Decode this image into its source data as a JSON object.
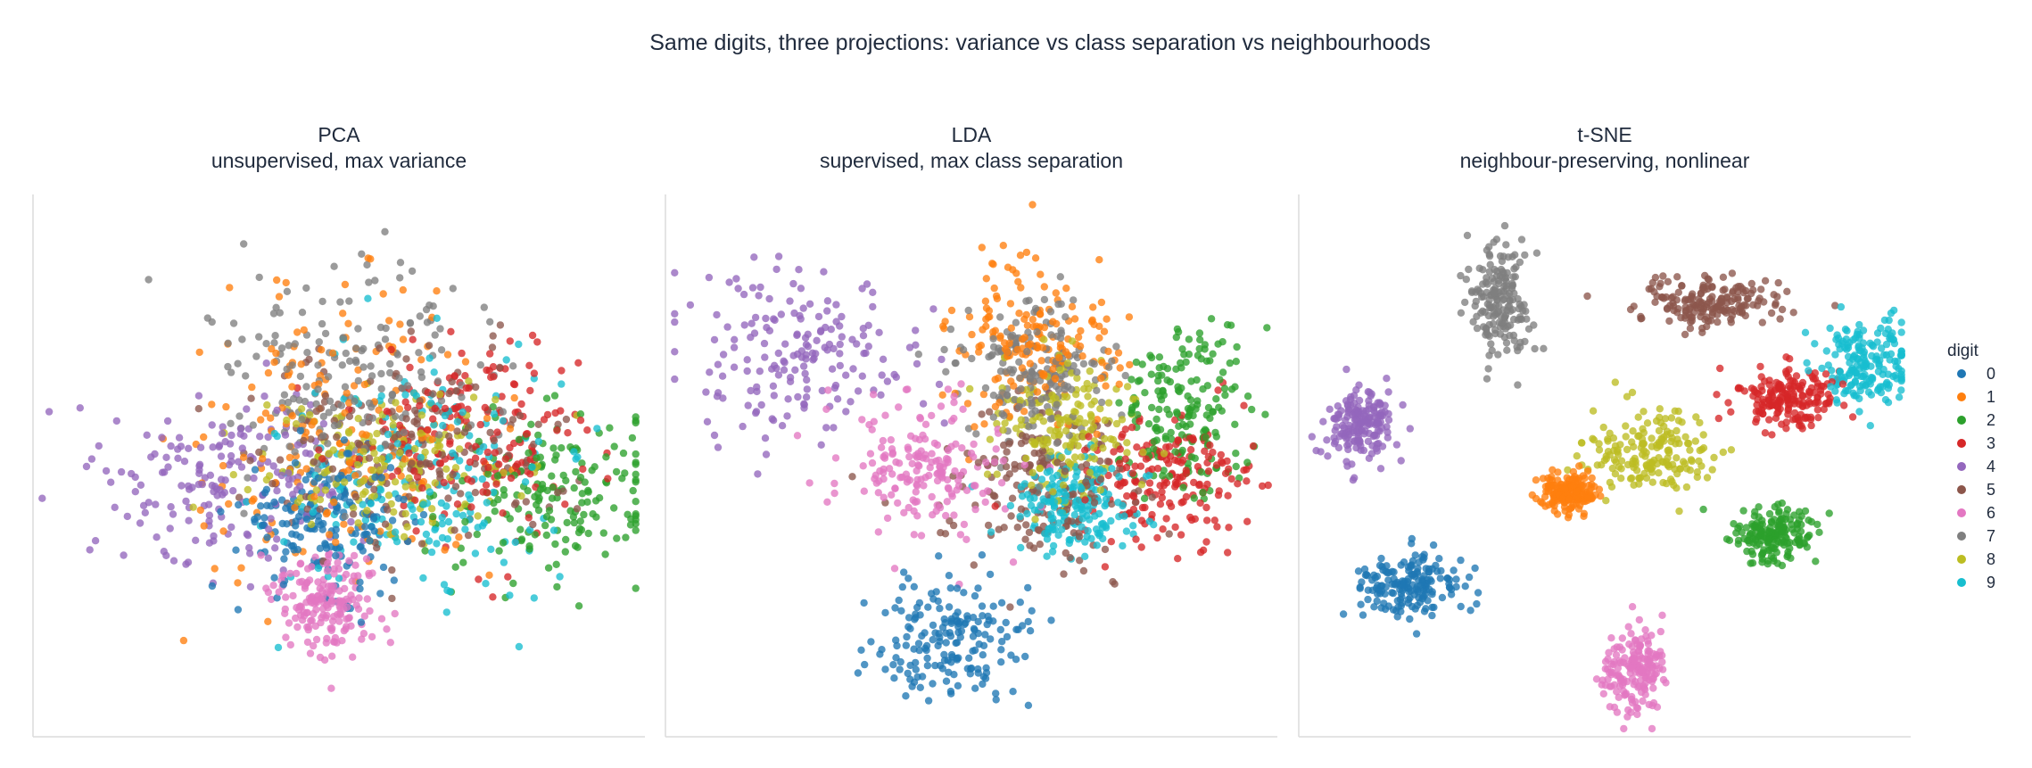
{
  "figure": {
    "title": "Same digits, three projections: variance vs class separation vs neighbourhoods"
  },
  "legend": {
    "title": "digit",
    "placement": "right",
    "entries": [
      "0",
      "1",
      "2",
      "3",
      "4",
      "5",
      "6",
      "7",
      "8",
      "9"
    ]
  },
  "palette": {
    "0": "#1f77b4",
    "1": "#ff7f0e",
    "2": "#2ca02c",
    "3": "#d62728",
    "4": "#9467bd",
    "5": "#8c564b",
    "6": "#e377c2",
    "7": "#7f7f7f",
    "8": "#bcbd22",
    "9": "#17becf"
  },
  "chart_data": [
    {
      "type": "scatter",
      "title": "PCA",
      "subtitle": "unsupervised, max variance",
      "xlabel": "",
      "ylabel": "",
      "axes_ticks": false,
      "grid": false,
      "xlim": [
        -10,
        10
      ],
      "ylim": [
        -10,
        10
      ],
      "point_count_per_class": 180,
      "series": [
        {
          "name": "0",
          "center": [
            -0.5,
            -2.0
          ],
          "spread": [
            1.4,
            1.2
          ]
        },
        {
          "name": "1",
          "center": [
            0.0,
            1.0
          ],
          "spread": [
            2.6,
            2.6
          ]
        },
        {
          "name": "2",
          "center": [
            7.0,
            -1.0
          ],
          "spread": [
            1.8,
            1.6
          ]
        },
        {
          "name": "3",
          "center": [
            4.5,
            1.2
          ],
          "spread": [
            2.0,
            1.8
          ]
        },
        {
          "name": "4",
          "center": [
            -3.5,
            -0.5
          ],
          "spread": [
            2.0,
            1.6
          ]
        },
        {
          "name": "5",
          "center": [
            2.5,
            0.5
          ],
          "spread": [
            2.6,
            1.8
          ]
        },
        {
          "name": "6",
          "center": [
            -0.5,
            -5.0
          ],
          "spread": [
            0.9,
            1.0
          ]
        },
        {
          "name": "7",
          "center": [
            0.5,
            3.5
          ],
          "spread": [
            2.5,
            2.0
          ]
        },
        {
          "name": "8",
          "center": [
            1.5,
            0.0
          ],
          "spread": [
            2.0,
            1.3
          ]
        },
        {
          "name": "9",
          "center": [
            2.5,
            -0.5
          ],
          "spread": [
            2.4,
            2.3
          ]
        }
      ]
    },
    {
      "type": "scatter",
      "title": "LDA",
      "subtitle": "supervised, max class separation",
      "xlabel": "",
      "ylabel": "",
      "axes_ticks": false,
      "grid": false,
      "xlim": [
        -10,
        10
      ],
      "ylim": [
        -10,
        10
      ],
      "point_count_per_class": 180,
      "series": [
        {
          "name": "0",
          "center": [
            -0.5,
            -6.5
          ],
          "spread": [
            1.3,
            1.2
          ]
        },
        {
          "name": "1",
          "center": [
            2.0,
            4.5
          ],
          "spread": [
            1.3,
            1.6
          ]
        },
        {
          "name": "2",
          "center": [
            7.0,
            2.0
          ],
          "spread": [
            1.1,
            1.6
          ]
        },
        {
          "name": "3",
          "center": [
            6.5,
            -0.5
          ],
          "spread": [
            1.3,
            1.1
          ]
        },
        {
          "name": "4",
          "center": [
            -6.0,
            4.0
          ],
          "spread": [
            2.0,
            1.5
          ]
        },
        {
          "name": "5",
          "center": [
            2.5,
            -1.0
          ],
          "spread": [
            1.6,
            1.5
          ]
        },
        {
          "name": "6",
          "center": [
            -1.5,
            0.0
          ],
          "spread": [
            1.4,
            1.3
          ]
        },
        {
          "name": "7",
          "center": [
            2.0,
            3.5
          ],
          "spread": [
            1.2,
            1.4
          ]
        },
        {
          "name": "8",
          "center": [
            3.0,
            1.5
          ],
          "spread": [
            1.2,
            1.4
          ]
        },
        {
          "name": "9",
          "center": [
            3.5,
            -1.5
          ],
          "spread": [
            1.0,
            0.9
          ]
        }
      ]
    },
    {
      "type": "scatter",
      "title": "t-SNE",
      "subtitle": "neighbour-preserving, nonlinear",
      "xlabel": "",
      "ylabel": "",
      "axes_ticks": false,
      "grid": false,
      "xlim": [
        -10,
        10
      ],
      "ylim": [
        -10,
        10
      ],
      "point_count_per_class": 180,
      "series": [
        {
          "name": "0",
          "center": [
            -6.5,
            -4.5
          ],
          "spread": [
            0.8,
            0.6
          ]
        },
        {
          "name": "1",
          "center": [
            -1.2,
            -1.0
          ],
          "spread": [
            0.5,
            0.4
          ]
        },
        {
          "name": "2",
          "center": [
            5.5,
            -2.5
          ],
          "spread": [
            0.7,
            0.5
          ]
        },
        {
          "name": "3",
          "center": [
            6.0,
            2.5
          ],
          "spread": [
            0.9,
            0.55
          ]
        },
        {
          "name": "4",
          "center": [
            -8.0,
            1.5
          ],
          "spread": [
            0.6,
            0.7
          ]
        },
        {
          "name": "5",
          "center": [
            3.5,
            6.0
          ],
          "spread": [
            1.2,
            0.45
          ]
        },
        {
          "name": "6",
          "center": [
            1.0,
            -7.5
          ],
          "spread": [
            0.55,
            0.8
          ]
        },
        {
          "name": "7",
          "center": [
            -3.5,
            6.0
          ],
          "spread": [
            0.55,
            1.1
          ]
        },
        {
          "name": "8",
          "center": [
            1.5,
            0.5
          ],
          "spread": [
            1.0,
            0.8
          ]
        },
        {
          "name": "9",
          "center": [
            8.5,
            3.8
          ],
          "spread": [
            0.7,
            0.8
          ]
        }
      ]
    }
  ]
}
